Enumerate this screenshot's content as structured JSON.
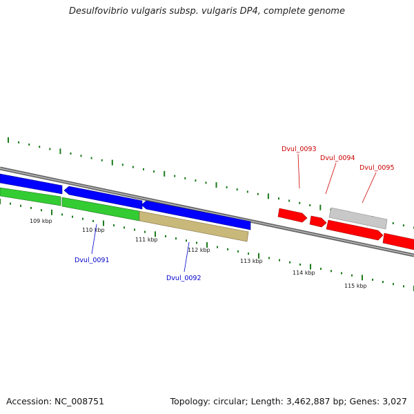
{
  "title": "Desulfovibrio vulgaris subsp. vulgaris DP4, complete genome",
  "footer": {
    "accession": "Accession: NC_008751",
    "stats": "Topology: circular; Length: 3,462,887 bp; Genes: 3,027"
  },
  "colors": {
    "forward_cds": "#ff0000",
    "reverse_cds": "#0000ff",
    "gc_plus": "#33cc33",
    "gc_minus": "#c8b87a",
    "other_feature": "#c8c8c8",
    "backbone": "#888888",
    "tick": "#1a7a1a",
    "label_blue": "#0000cc",
    "label_red": "#cc0000"
  },
  "kbp_labels": [
    "109 kbp",
    "110 kbp",
    "111 kbp",
    "112 kbp",
    "113 kbp",
    "114 kbp",
    "115 kbp"
  ],
  "gene_labels": [
    {
      "id": "dvul-0091",
      "text": "Dvul_0091",
      "strand": "reverse"
    },
    {
      "id": "dvul-0092",
      "text": "Dvul_0092",
      "strand": "reverse"
    },
    {
      "id": "dvul-0093",
      "text": "Dvul_0093",
      "strand": "forward"
    },
    {
      "id": "dvul-0094",
      "text": "Dvul_0094",
      "strand": "forward"
    },
    {
      "id": "dvul-0095",
      "text": "Dvul_0095",
      "strand": "forward"
    }
  ]
}
